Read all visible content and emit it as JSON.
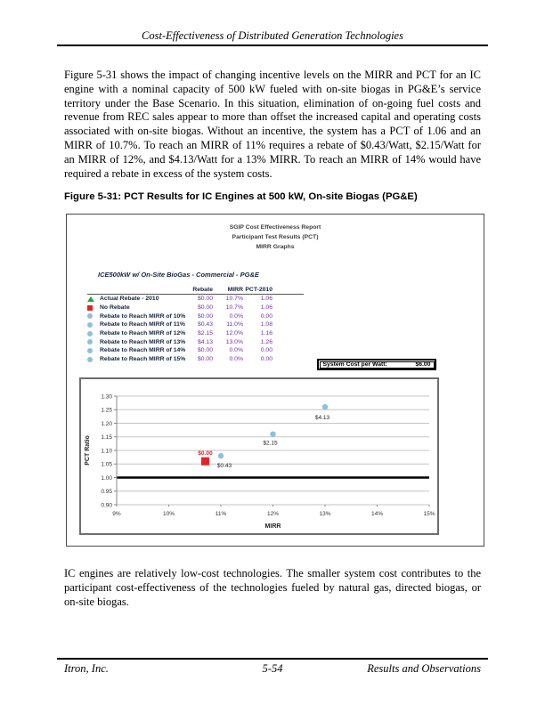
{
  "page": {
    "header_title": "Cost-Effectiveness of Distributed Generation Technologies",
    "footer": {
      "left": "Itron, Inc.",
      "center": "5-54",
      "right": "Results and Observations"
    }
  },
  "paragraphs": {
    "intro": "Figure 5-31 shows the impact of changing incentive levels on the MIRR and PCT for an IC engine with a nominal capacity of 500 kW fueled with on-site biogas in PG&E’s service territory under the Base Scenario. In this situation, elimination of on-going fuel costs and revenue from REC sales appear to more than offset the increased capital and operating costs associated with on-site biogas.  Without an incentive, the system has a PCT of 1.06 and an MIRR of 10.7%.  To reach an MIRR of 11% requires a rebate of $0.43/Watt, $2.15/Watt for an MIRR of 12%, and $4.13/Watt for a 13% MIRR.  To reach an MIRR of 14% would have required a rebate in excess of the system costs.",
    "outro": "IC engines are relatively low-cost technologies.  The smaller system cost contributes to the participant cost-effectiveness of the technologies fueled by natural gas, directed biogas, or on-site biogas."
  },
  "figure": {
    "caption": "Figure 5-31:  PCT Results for IC Engines at 500 kW, On-site Biogas (PG&E)",
    "report_header_lines": {
      "0": "SGIP Cost Effectiveness Report",
      "1": "Participant Test Results (PCT)",
      "2": "MIRR Graphs"
    },
    "subtitle": "ICE500kW w/ On-Site BioGas - Commercial - PG&E",
    "table": {
      "columns": {
        "0": "Rebate",
        "1": "MIRR",
        "2": "PCT-2010"
      },
      "rows": [
        {
          "marker": "triangle",
          "marker_color": "#2aa23c",
          "label": "Actual Rebate - 2010",
          "rebate": "$0.00",
          "mirr": "10.7%",
          "pct": "1.06"
        },
        {
          "marker": "square",
          "marker_color": "#e32128",
          "label": "No Rebate",
          "rebate": "$0.00",
          "mirr": "10.7%",
          "pct": "1.06"
        },
        {
          "marker": "circle",
          "marker_color": "#8cc0dc",
          "label": "Rebate to Reach MIRR of 10%",
          "rebate": "$0.00",
          "mirr": "0.0%",
          "pct": "0.00"
        },
        {
          "marker": "circle",
          "marker_color": "#8cc0dc",
          "label": "Rebate to Reach MIRR of 11%",
          "rebate": "$0.43",
          "mirr": "11.0%",
          "pct": "1.08"
        },
        {
          "marker": "circle",
          "marker_color": "#8cc0dc",
          "label": "Rebate to Reach MIRR of 12%",
          "rebate": "$2.15",
          "mirr": "12.0%",
          "pct": "1.16"
        },
        {
          "marker": "circle",
          "marker_color": "#8cc0dc",
          "label": "Rebate to Reach MIRR of 13%",
          "rebate": "$4.13",
          "mirr": "13.0%",
          "pct": "1.26"
        },
        {
          "marker": "circle",
          "marker_color": "#8cc0dc",
          "label": "Rebate to Reach MIRR of 14%",
          "rebate": "$0.00",
          "mirr": "0.0%",
          "pct": "0.00"
        },
        {
          "marker": "circle",
          "marker_color": "#8cc0dc",
          "label": "Rebate to Reach MIRR of 15%",
          "rebate": "$0.00",
          "mirr": "0.0%",
          "pct": "0.00"
        }
      ]
    },
    "system_cost": {
      "label": "System Cost per Watt:",
      "value": "$6.00"
    }
  },
  "chart_data": {
    "type": "scatter",
    "title": "",
    "xlabel": "MIRR",
    "ylabel": "PCT Ratio",
    "xlim": [
      9,
      15
    ],
    "ylim": [
      0.9,
      1.3
    ],
    "y_tick_step": 0.05,
    "x_ticks": [
      "9%",
      "10%",
      "11%",
      "12%",
      "13%",
      "14%",
      "15%"
    ],
    "grid": true,
    "legend_position": "none",
    "reference_line_y": 1.0,
    "colors": {
      "grid": "#c6c6c6",
      "reference": "#000000",
      "values_text": "#7030a0"
    },
    "series": [
      {
        "name": "Actual Rebate - 2010",
        "marker": "triangle",
        "color": "#2aa23c",
        "points": [
          {
            "x": 10.7,
            "y": 1.06
          }
        ]
      },
      {
        "name": "No Rebate",
        "marker": "square",
        "color": "#e32128",
        "points": [
          {
            "x": 10.7,
            "y": 1.06,
            "label": "$0.00",
            "label_color": "#e32128",
            "label_dx": 0,
            "label_dy": -7
          }
        ]
      },
      {
        "name": "Rebate to Reach MIRR",
        "marker": "circle",
        "color": "#8cc0dc",
        "points": [
          {
            "x": 11.0,
            "y": 1.08,
            "label": "$0.43",
            "label_dx": 4,
            "label_dy": 13
          },
          {
            "x": 12.0,
            "y": 1.16,
            "label": "$2.15",
            "label_dx": -3,
            "label_dy": 12
          },
          {
            "x": 13.0,
            "y": 1.26,
            "label": "$4.13",
            "label_dx": -3,
            "label_dy": 14
          }
        ]
      }
    ]
  }
}
